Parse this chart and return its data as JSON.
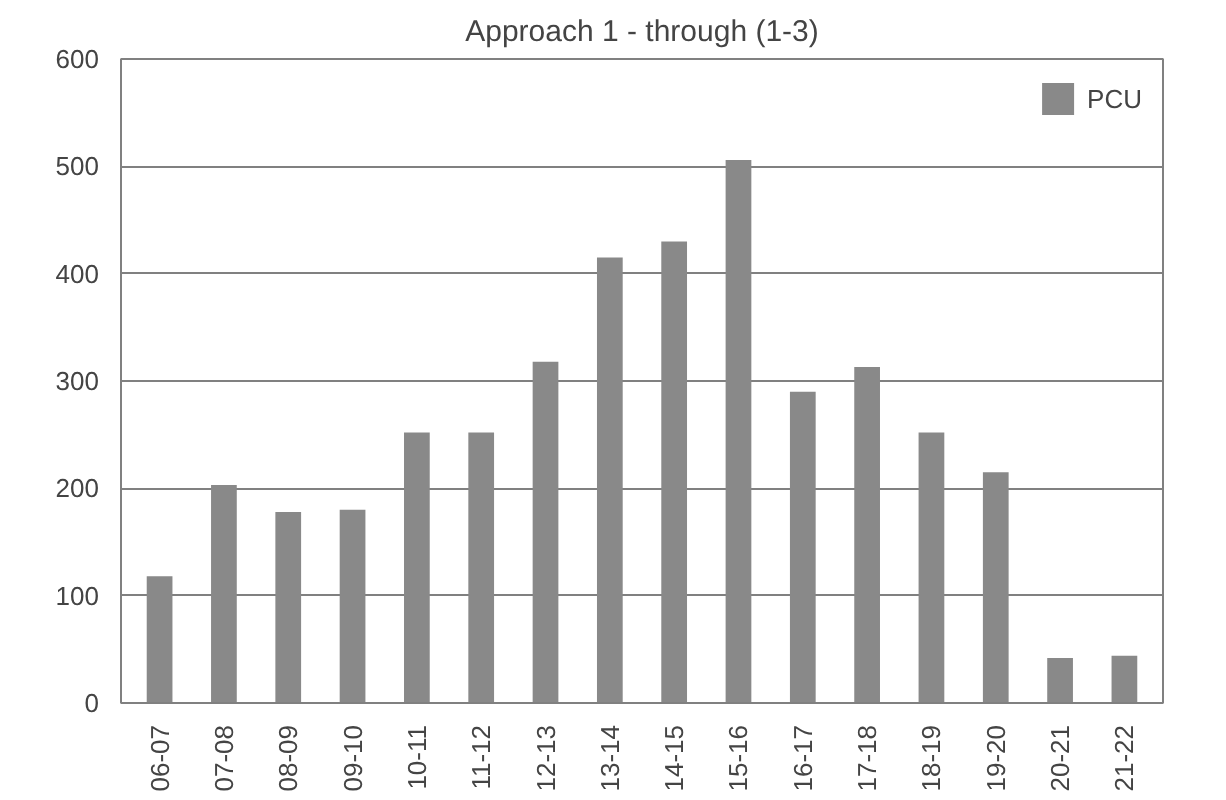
{
  "chart_data": {
    "type": "bar",
    "title": "Approach 1 - through (1-3)",
    "categories": [
      "06-07",
      "07-08",
      "08-09",
      "09-10",
      "10-11",
      "11-12",
      "12-13",
      "13-14",
      "14-15",
      "15-16",
      "16-17",
      "17-18",
      "18-19",
      "19-20",
      "20-21",
      "21-22"
    ],
    "series": [
      {
        "name": "PCU",
        "color": "#898989",
        "values": [
          118,
          203,
          178,
          180,
          252,
          252,
          318,
          415,
          430,
          506,
          290,
          313,
          252,
          215,
          42,
          44
        ]
      }
    ],
    "ylim": [
      0,
      600
    ],
    "yticks": [
      0,
      100,
      200,
      300,
      400,
      500,
      600
    ],
    "grid": "y",
    "legend": "top right"
  }
}
